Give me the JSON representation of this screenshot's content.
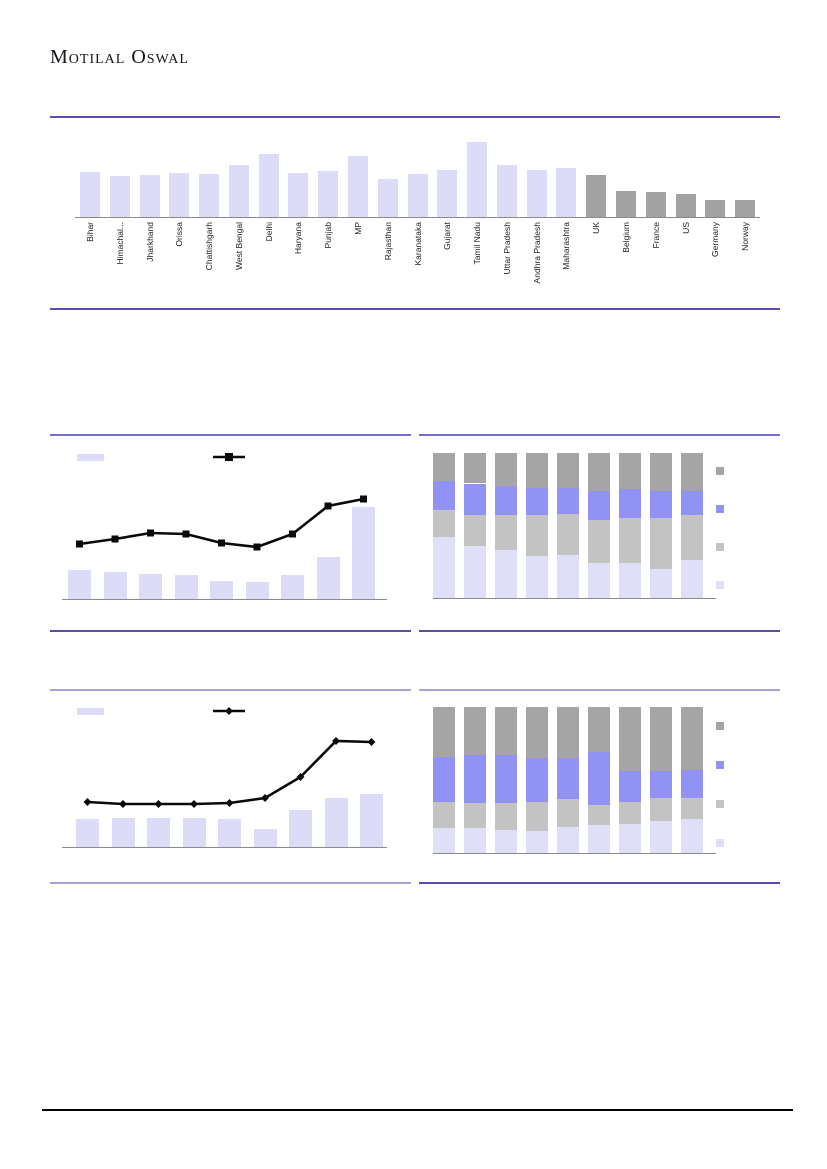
{
  "page": {
    "brand": "Motilal Oswal"
  },
  "colors": {
    "lavender": "#dcdcf8",
    "country_gray": "#a2a2a2",
    "stack_lavender": "#dfdff8",
    "stack_gray": "#c3c3c3",
    "stack_blue": "#9292f4",
    "stack_dark_gray": "#a5a5a5",
    "line_black": "#0a0a0a",
    "axis_gray": "#8a8a8a",
    "rule_top_purple": "#5a50b4",
    "rule_medium_purple": "#7470c8",
    "rule_dark_purple": "#574ea6",
    "rule_light_purple": "#a8a2d8",
    "footer_black": "#000000"
  },
  "chart_data": [
    {
      "id": "states-vs-countries-bars",
      "type": "bar",
      "title": "",
      "categories": [
        "Bihar",
        "Himachal...",
        "Jharkhand",
        "Orissa",
        "Chattishgarh",
        "West Bengal",
        "Delhi",
        "Haryana",
        "Punjab",
        "MP",
        "Rajasthan",
        "Karanataka",
        "Gujarat",
        "Tamil Nadu",
        "Uttar Pradesh",
        "Andhra Pradesh",
        "Maharashtra",
        "UK",
        "Belgium",
        "France",
        "US",
        "Germany",
        "Norway"
      ],
      "values": [
        45,
        41,
        42,
        44,
        43,
        52,
        63,
        44,
        46,
        61,
        38,
        43,
        47,
        75,
        52,
        47,
        49,
        42,
        26,
        25,
        23,
        17,
        17
      ],
      "groups": [
        {
          "name": "india-states",
          "color_key": "lavender",
          "range": [
            0,
            16
          ]
        },
        {
          "name": "countries",
          "color_key": "country_gray",
          "range": [
            17,
            22
          ]
        }
      ],
      "xlabel": "",
      "ylabel": "",
      "ylim": [
        0,
        77
      ],
      "x_tick_rotation": 90,
      "grid": false
    },
    {
      "id": "combo-bars-line-1",
      "type": "bar+line",
      "title": "",
      "n_points": 9,
      "categories": [
        "",
        "",
        "",
        "",
        "",
        "",
        "",
        "",
        ""
      ],
      "bar_values": [
        30,
        28,
        26,
        25,
        19,
        18,
        25,
        43,
        93
      ],
      "line_values": [
        56,
        61,
        67,
        66,
        57,
        53,
        66,
        94,
        101
      ],
      "line_marker": "square",
      "bar_color_key": "lavender",
      "line_color_key": "line_black",
      "ylim": [
        0,
        145
      ],
      "legend_position": "top",
      "grid": false
    },
    {
      "id": "stacked-100pct-1",
      "type": "stacked-bar",
      "title": "",
      "n_points": 9,
      "categories": [
        "",
        "",
        "",
        "",
        "",
        "",
        "",
        "",
        ""
      ],
      "series_bottom_to_top": [
        {
          "name": "segment-lavender",
          "color_key": "stack_lavender",
          "values": [
            42,
            36,
            33,
            29,
            30,
            24,
            24,
            20,
            26
          ]
        },
        {
          "name": "segment-gray",
          "color_key": "stack_gray",
          "values": [
            19,
            21,
            24,
            28,
            28,
            30,
            31,
            35,
            31
          ]
        },
        {
          "name": "segment-blue",
          "color_key": "stack_blue",
          "values": [
            20,
            22,
            20,
            19,
            18,
            20,
            20,
            19,
            17
          ]
        },
        {
          "name": "segment-dark-gray",
          "color_key": "stack_dark_gray",
          "values": [
            19,
            21,
            23,
            24,
            24,
            26,
            25,
            26,
            26
          ]
        }
      ],
      "ylim": [
        0,
        100
      ],
      "legend_position": "right",
      "grid": false
    },
    {
      "id": "combo-bars-line-2",
      "type": "bar+line",
      "title": "",
      "n_points": 9,
      "categories": [
        "",
        "",
        "",
        "",
        "",
        "",
        "",
        "",
        ""
      ],
      "bar_values": [
        29,
        30,
        30,
        30,
        29,
        19,
        38,
        50,
        54
      ],
      "line_values": [
        46,
        44,
        44,
        44,
        45,
        50,
        71,
        107,
        106
      ],
      "line_marker": "diamond",
      "bar_color_key": "lavender",
      "line_color_key": "line_black",
      "ylim": [
        0,
        145
      ],
      "legend_position": "top",
      "grid": false
    },
    {
      "id": "stacked-100pct-2",
      "type": "stacked-bar",
      "title": "",
      "n_points": 9,
      "categories": [
        "",
        "",
        "",
        "",
        "",
        "",
        "",
        "",
        ""
      ],
      "series_bottom_to_top": [
        {
          "name": "segment-lavender",
          "color_key": "stack_lavender",
          "values": [
            17,
            17,
            16,
            15,
            18,
            19,
            20,
            22,
            23
          ]
        },
        {
          "name": "segment-gray",
          "color_key": "stack_gray",
          "values": [
            18,
            17,
            18,
            20,
            19,
            14,
            15,
            16,
            15
          ]
        },
        {
          "name": "segment-blue",
          "color_key": "stack_blue",
          "values": [
            31,
            33,
            33,
            30,
            28,
            36,
            21,
            18,
            19
          ]
        },
        {
          "name": "segment-dark-gray",
          "color_key": "stack_dark_gray",
          "values": [
            34,
            33,
            33,
            35,
            35,
            31,
            44,
            44,
            43
          ]
        }
      ],
      "ylim": [
        0,
        100
      ],
      "legend_position": "right",
      "grid": false
    }
  ]
}
